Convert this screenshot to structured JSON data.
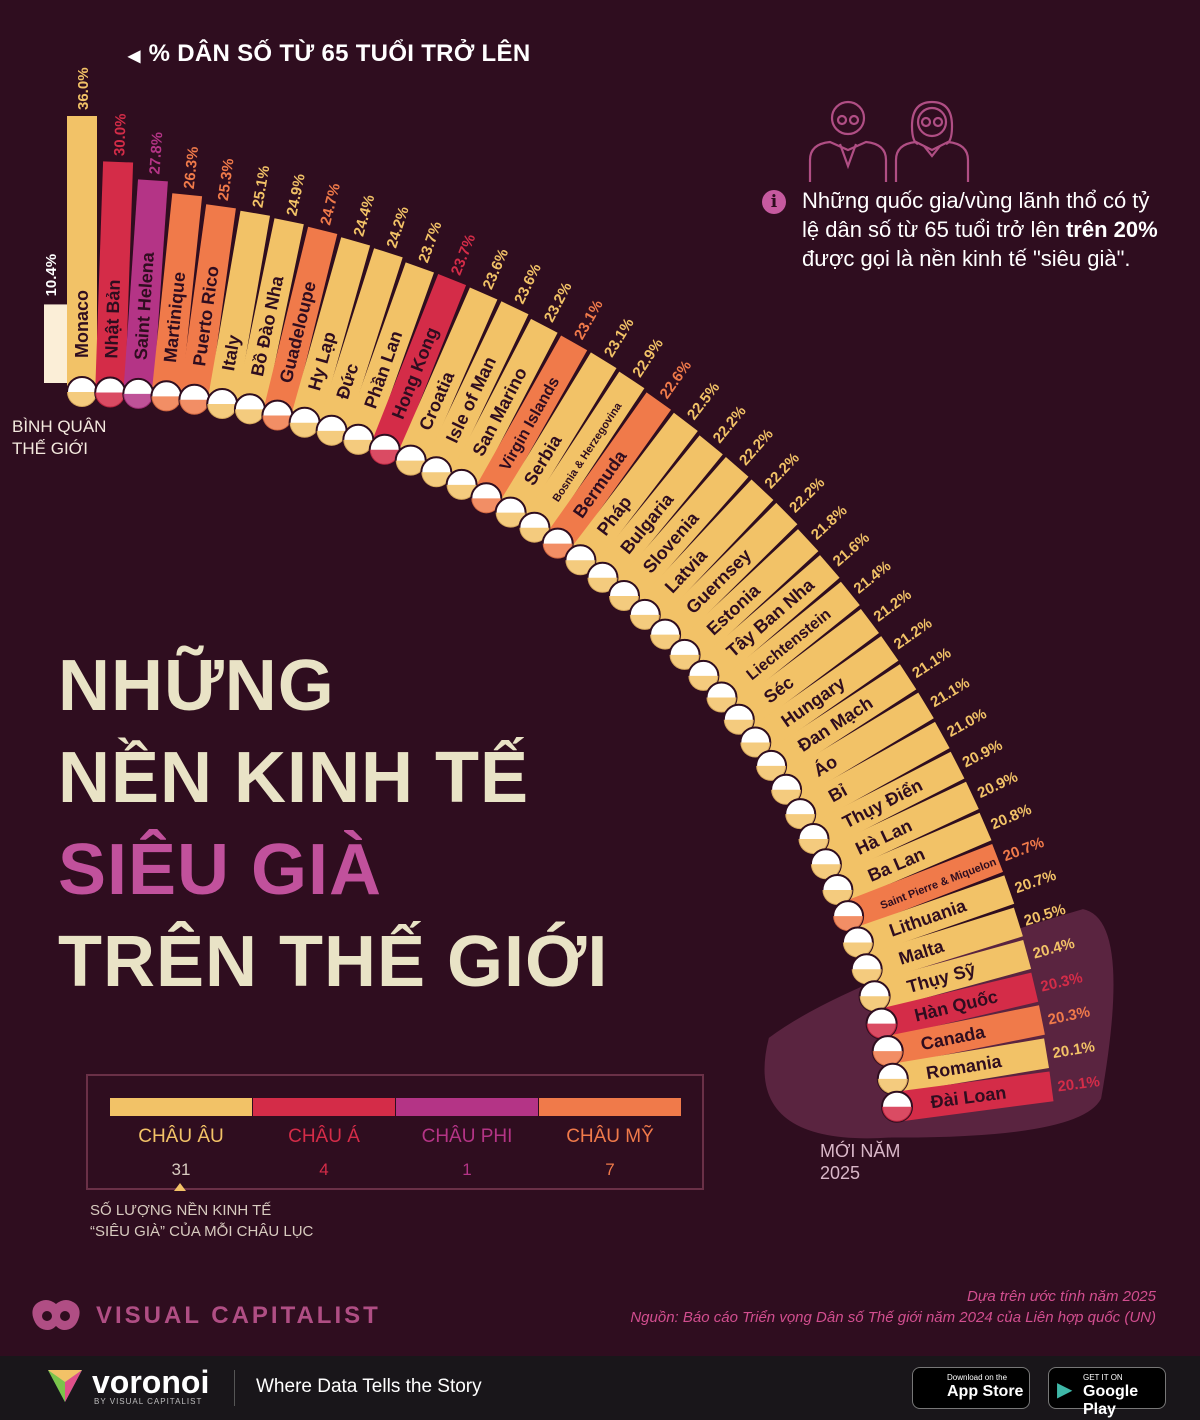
{
  "axis_title": "% DÂN SỐ TỪ 65 TUỔI TRỞ LÊN",
  "world_average": {
    "label_line1": "BÌNH QUÂN",
    "label_line2": "THẾ GIỚI",
    "value_label": "10.4%"
  },
  "headline": {
    "line1": "NHỮNG",
    "line2": "NỀN KINH TẾ",
    "line3": "SIÊU GIÀ",
    "line4": "TRÊN THẾ GIỚI"
  },
  "info": {
    "icon": "info-icon",
    "text_before": "Những quốc gia/vùng lãnh thổ có tỷ lệ dân số từ 65 tuổi trở lên ",
    "text_bold": "trên 20%",
    "text_after": " được gọi là nền kinh tế \"siêu già\"."
  },
  "colors": {
    "europe": "#f2c267",
    "asia": "#d42c48",
    "africa": "#b43486",
    "americas": "#f07a4a",
    "background": "#2f0d1f",
    "headline": "#e9e3c6",
    "accent": "#c1519c"
  },
  "legend": [
    {
      "name": "CHÂU ÂU",
      "count": "31",
      "color": "#f2c267"
    },
    {
      "name": "CHÂU Á",
      "count": "4",
      "color": "#d42c48"
    },
    {
      "name": "CHÂU PHI",
      "count": "1",
      "color": "#b43486"
    },
    {
      "name": "CHÂU MỸ",
      "count": "7",
      "color": "#f07a4a"
    }
  ],
  "legend_note_line1": "SỐ LƯỢNG NỀN KINH TẾ",
  "legend_note_line2": "“SIÊU GIÀ” CỦA MỖI CHÂU LỤC",
  "new_label_line1": "MỚI NĂM",
  "new_label_line2": "2025",
  "source_line1": "Dựa trên ước tính năm 2025",
  "source_line2": "Nguồn: Báo cáo Triển vọng Dân số Thế giới năm 2024 của Liên hợp quốc (UN)",
  "brand": "VISUAL CAPITALIST",
  "footer": {
    "brand": "voronoi",
    "brand_sub": "BY VISUAL CAPITALIST",
    "tagline": "Where Data Tells the Story",
    "app_store_small": "Download on the",
    "app_store": "App Store",
    "google_small": "GET IT ON",
    "google": "Google Play"
  },
  "chart_data": {
    "type": "bar",
    "title": "% DÂN SỐ TỪ 65 TUỔI TRỞ LÊN",
    "ylabel": "% dân số từ 65 tuổi trở lên",
    "ylim": [
      0,
      36
    ],
    "average": {
      "name": "Bình quân thế giới",
      "value": 10.4,
      "label": "10.4%"
    },
    "bars": [
      {
        "name": "Monaco",
        "value": 36.0,
        "label": "36.0%",
        "region": "europe"
      },
      {
        "name": "Nhật Bản",
        "value": 30.0,
        "label": "30.0%",
        "region": "asia"
      },
      {
        "name": "Saint Helena",
        "value": 27.8,
        "label": "27.8%",
        "region": "africa"
      },
      {
        "name": "Martinique",
        "value": 26.3,
        "label": "26.3%",
        "region": "americas"
      },
      {
        "name": "Puerto Rico",
        "value": 25.3,
        "label": "25.3%",
        "region": "americas"
      },
      {
        "name": "Italy",
        "value": 25.1,
        "label": "25.1%",
        "region": "europe"
      },
      {
        "name": "Bồ Đào Nha",
        "value": 24.9,
        "label": "24.9%",
        "region": "europe"
      },
      {
        "name": "Guadeloupe",
        "value": 24.7,
        "label": "24.7%",
        "region": "americas"
      },
      {
        "name": "Hy Lạp",
        "value": 24.4,
        "label": "24.4%",
        "region": "europe"
      },
      {
        "name": "Đức",
        "value": 24.2,
        "label": "24.2%",
        "region": "europe"
      },
      {
        "name": "Phần Lan",
        "value": 23.7,
        "label": "23.7%",
        "region": "europe"
      },
      {
        "name": "Hong Kong",
        "value": 23.7,
        "label": "23.7%",
        "region": "asia"
      },
      {
        "name": "Croatia",
        "value": 23.6,
        "label": "23.6%",
        "region": "europe"
      },
      {
        "name": "Isle of Man",
        "value": 23.6,
        "label": "23.6%",
        "region": "europe"
      },
      {
        "name": "San Marino",
        "value": 23.2,
        "label": "23.2%",
        "region": "europe"
      },
      {
        "name": "Virgin Islands",
        "value": 23.1,
        "label": "23.1%",
        "region": "americas"
      },
      {
        "name": "Serbia",
        "value": 23.1,
        "label": "23.1%",
        "region": "europe"
      },
      {
        "name": "Bosnia & Herzegovina",
        "value": 22.9,
        "label": "22.9%",
        "region": "europe"
      },
      {
        "name": "Bermuda",
        "value": 22.6,
        "label": "22.6%",
        "region": "americas"
      },
      {
        "name": "Pháp",
        "value": 22.5,
        "label": "22.5%",
        "region": "europe"
      },
      {
        "name": "Bulgaria",
        "value": 22.2,
        "label": "22.2%",
        "region": "europe"
      },
      {
        "name": "Slovenia",
        "value": 22.2,
        "label": "22.2%",
        "region": "europe"
      },
      {
        "name": "Latvia",
        "value": 22.2,
        "label": "22.2%",
        "region": "europe"
      },
      {
        "name": "Guernsey",
        "value": 22.2,
        "label": "22.2%",
        "region": "europe"
      },
      {
        "name": "Estonia",
        "value": 21.8,
        "label": "21.8%",
        "region": "europe"
      },
      {
        "name": "Tây Ban Nha",
        "value": 21.6,
        "label": "21.6%",
        "region": "europe"
      },
      {
        "name": "Liechtenstein",
        "value": 21.4,
        "label": "21.4%",
        "region": "europe"
      },
      {
        "name": "Séc",
        "value": 21.2,
        "label": "21.2%",
        "region": "europe"
      },
      {
        "name": "Hungary",
        "value": 21.2,
        "label": "21.2%",
        "region": "europe"
      },
      {
        "name": "Đan Mạch",
        "value": 21.1,
        "label": "21.1%",
        "region": "europe"
      },
      {
        "name": "Áo",
        "value": 21.1,
        "label": "21.1%",
        "region": "europe"
      },
      {
        "name": "Bỉ",
        "value": 21.0,
        "label": "21.0%",
        "region": "europe"
      },
      {
        "name": "Thụy Điển",
        "value": 20.9,
        "label": "20.9%",
        "region": "europe"
      },
      {
        "name": "Hà Lan",
        "value": 20.9,
        "label": "20.9%",
        "region": "europe"
      },
      {
        "name": "Ba Lan",
        "value": 20.8,
        "label": "20.8%",
        "region": "europe"
      },
      {
        "name": "Saint Pierre & Miquelon",
        "value": 20.7,
        "label": "20.7%",
        "region": "americas"
      },
      {
        "name": "Lithuania",
        "value": 20.7,
        "label": "20.7%",
        "region": "europe"
      },
      {
        "name": "Malta",
        "value": 20.5,
        "label": "20.5%",
        "region": "europe"
      },
      {
        "name": "Thụy Sỹ",
        "value": 20.4,
        "label": "20.4%",
        "region": "europe",
        "new_2025": true
      },
      {
        "name": "Hàn Quốc",
        "value": 20.3,
        "label": "20.3%",
        "region": "asia",
        "new_2025": true
      },
      {
        "name": "Canada",
        "value": 20.3,
        "label": "20.3%",
        "region": "americas",
        "new_2025": true
      },
      {
        "name": "Romania",
        "value": 20.1,
        "label": "20.1%",
        "region": "europe",
        "new_2025": true
      },
      {
        "name": "Đài Loan",
        "value": 20.1,
        "label": "20.1%",
        "region": "asia",
        "new_2025": true
      }
    ]
  }
}
